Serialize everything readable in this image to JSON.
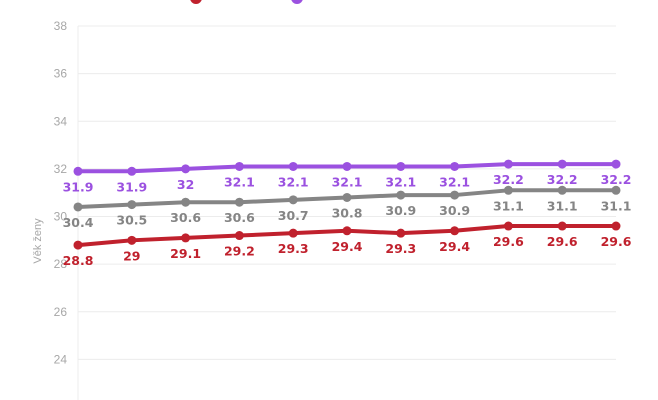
{
  "chart_data": {
    "type": "line",
    "ylabel": "Věk ženy",
    "ylim": [
      22,
      38
    ],
    "yticks": [
      24,
      26,
      28,
      30,
      32,
      34,
      36,
      38
    ],
    "grid": "horizontal",
    "legend_position": "top",
    "points_per_series": 11,
    "series": [
      {
        "key": "purple",
        "color": "#9b51e0",
        "values": [
          31.9,
          31.9,
          32.0,
          32.1,
          32.1,
          32.1,
          32.1,
          32.1,
          32.2,
          32.2,
          32.2
        ],
        "labels": [
          "31.9",
          "31.9",
          "32",
          "32.1",
          "32.1",
          "32.1",
          "32.1",
          "32.1",
          "32.2",
          "32.2",
          "32.2"
        ]
      },
      {
        "key": "gray",
        "color": "#858585",
        "values": [
          30.4,
          30.5,
          30.6,
          30.6,
          30.7,
          30.8,
          30.9,
          30.9,
          31.1,
          31.1,
          31.1
        ],
        "labels": [
          "30.4",
          "30.5",
          "30.6",
          "30.6",
          "30.7",
          "30.8",
          "30.9",
          "30.9",
          "31.1",
          "31.1",
          "31.1"
        ]
      },
      {
        "key": "red",
        "color": "#c0212d",
        "values": [
          28.8,
          29.0,
          29.1,
          29.2,
          29.3,
          29.4,
          29.3,
          29.4,
          29.6,
          29.6,
          29.6
        ],
        "labels": [
          "28.8",
          "29",
          "29.1",
          "29.2",
          "29.3",
          "29.4",
          "29.3",
          "29.4",
          "29.6",
          "29.6",
          "29.6"
        ]
      }
    ]
  }
}
